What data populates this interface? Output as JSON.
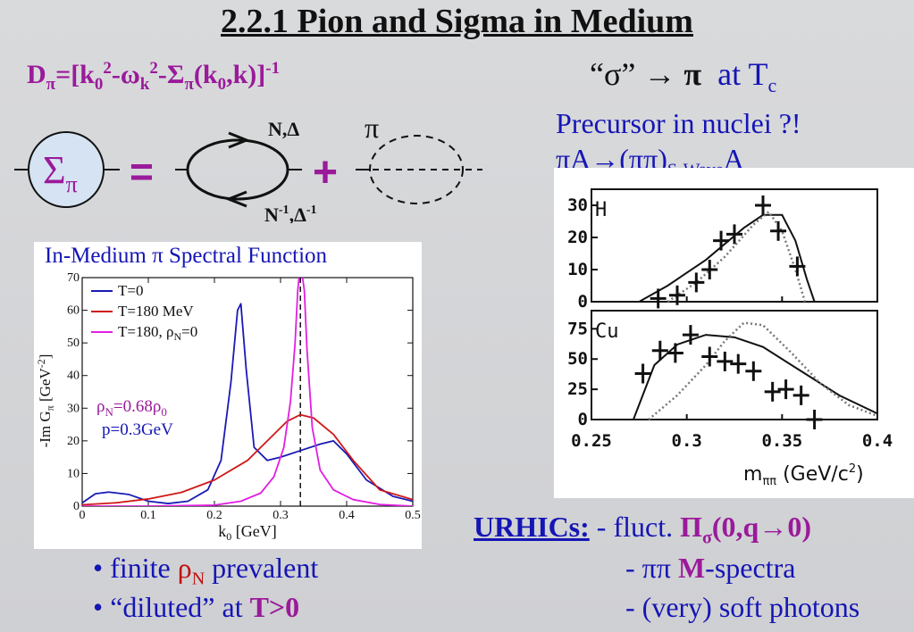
{
  "title": "2.2.1 Pion and Sigma in Medium",
  "formula": {
    "text": "D",
    "sub": "π",
    "rest1": "=[k",
    "sub0": "0",
    "sup2": "2",
    "rest2": "-ω",
    "subk": "k",
    "sup2b": "2",
    "rest3": "-Σ",
    "subpi": "π",
    "rest4": "(k",
    "sub0b": "0",
    "rest5": ",k)]",
    "supm1": "-1"
  },
  "sigma_pi": {
    "quote_sigma": "“σ”",
    "arrow": "→",
    "pi": "π",
    "at": "at T",
    "c": "c"
  },
  "precursor": {
    "line1": "Precursor in nuclei ?!",
    "line2a": "πA→(ππ)",
    "line2sub": "S-Wave",
    "line2b": "A"
  },
  "diagram": {
    "sigma_label": "Σ",
    "sigma_sub": "π",
    "equals": "=",
    "plus": "+",
    "loop_top": "N,Δ",
    "loop_bottom_a": "N",
    "loop_bottom_sup": "-1",
    "loop_bottom_b": ",Δ",
    "loop_bottom_sup2": "-1",
    "pi_label": "π"
  },
  "spectral": {
    "caption_a": "In-Medium ",
    "caption_pi": "π",
    "caption_b": " Spectral Function",
    "legend": [
      {
        "label": "T=0",
        "color": "#1a1ab4"
      },
      {
        "label": "T=180 MeV",
        "color": "#d01818"
      },
      {
        "label_a": "T=180, ρ",
        "label_sub": "N",
        "label_b": "=0",
        "color": "#e020e0"
      }
    ],
    "rho_a": "ρ",
    "rho_sub": "N",
    "rho_b": "=0.68ρ",
    "rho_sub2": "0",
    "p": "p=0.3GeV",
    "ylabel": "-Im G",
    "ylabel_sub": "π",
    "ylabel_unit": " [GeV",
    "ylabel_sup": "-2",
    "ylabel_close": "]",
    "xlabel_a": "k",
    "xlabel_sub": "0",
    "xlabel_b": " [GeV]",
    "xticks": [
      "0",
      "0.1",
      "0.2",
      "0.3",
      "0.4",
      "0.5"
    ],
    "yticks": [
      "0",
      "10",
      "20",
      "30",
      "40",
      "50",
      "60",
      "70"
    ]
  },
  "chart_data": [
    {
      "type": "line",
      "title": "In-Medium π Spectral Function",
      "xlabel": "k0 [GeV]",
      "ylabel": "-Im Gπ [GeV-2]",
      "xlim": [
        0,
        0.5
      ],
      "ylim": [
        0,
        70
      ],
      "series": [
        {
          "name": "T=0",
          "x": [
            0.0,
            0.02,
            0.04,
            0.07,
            0.1,
            0.13,
            0.16,
            0.19,
            0.21,
            0.225,
            0.235,
            0.24,
            0.248,
            0.26,
            0.28,
            0.3,
            0.33,
            0.36,
            0.38,
            0.4,
            0.43,
            0.47,
            0.5
          ],
          "y": [
            1,
            3.8,
            4.3,
            3.6,
            1.5,
            0.8,
            1.5,
            5,
            14,
            38,
            60,
            62,
            42,
            18,
            14,
            15,
            17,
            19,
            20,
            16,
            8,
            3,
            1.5
          ]
        },
        {
          "name": "T=180 MeV",
          "x": [
            0.0,
            0.05,
            0.1,
            0.15,
            0.2,
            0.25,
            0.28,
            0.31,
            0.33,
            0.35,
            0.38,
            0.41,
            0.45,
            0.5
          ],
          "y": [
            0.4,
            1,
            2.2,
            4.2,
            8,
            14,
            20,
            26,
            28,
            27,
            22,
            14,
            5,
            2
          ]
        },
        {
          "name": "T=180, ρN=0",
          "x": [
            0.0,
            0.1,
            0.2,
            0.24,
            0.27,
            0.29,
            0.305,
            0.315,
            0.322,
            0.326,
            0.329,
            0.332,
            0.336,
            0.34,
            0.348,
            0.36,
            0.38,
            0.41,
            0.45,
            0.5
          ],
          "y": [
            0,
            0,
            0.3,
            1.5,
            4,
            9,
            18,
            32,
            50,
            66,
            72,
            72,
            66,
            48,
            24,
            11,
            5,
            2,
            0.5,
            0
          ]
        }
      ],
      "vline_x": 0.33
    },
    {
      "type": "scatter",
      "panels": [
        {
          "label": "H",
          "ylim": [
            0,
            35
          ],
          "yticks": [
            "30",
            "20",
            "10",
            "0"
          ],
          "points_x": [
            0.285,
            0.295,
            0.305,
            0.312,
            0.318,
            0.325,
            0.34,
            0.348,
            0.358
          ],
          "points_y": [
            1,
            2,
            6,
            10,
            19,
            21,
            30,
            22,
            11
          ]
        },
        {
          "label": "Cu",
          "ylim": [
            0,
            90
          ],
          "yticks": [
            "75",
            "50",
            "25",
            "0"
          ],
          "points_x": [
            0.277,
            0.286,
            0.294,
            0.302,
            0.312,
            0.32,
            0.327,
            0.335,
            0.345,
            0.352,
            0.36,
            0.367
          ],
          "points_y": [
            38,
            57,
            55,
            70,
            52,
            48,
            46,
            40,
            23,
            25,
            20,
            0
          ]
        }
      ],
      "xlim": [
        0.25,
        0.4
      ],
      "xticks": [
        "0.25",
        "0.3",
        "0.35",
        "0.4"
      ],
      "xlabel": "mππ (GeV/c²)"
    }
  ],
  "nuclei": {
    "panel_h": "H",
    "panel_cu": "Cu",
    "xlabel_a": "m",
    "xlabel_sub": "ππ",
    "xlabel_b": " (GeV/c",
    "xlabel_sup": "2",
    "xlabel_c": ")"
  },
  "bullets": [
    {
      "a": "• finite ",
      "b": "ρ",
      "bsub": "N",
      "c": " prevalent"
    },
    {
      "a": "• “diluted” at ",
      "b": "T>0"
    }
  ],
  "urhics": {
    "label": "URHICs:",
    "l1a": " - fluct. ",
    "l1b": "Π",
    "l1sub": "σ",
    "l1c": "(0,q→0)",
    "l2a": "- ππ ",
    "l2b": "M",
    "l2c": "-spectra",
    "l3": "- (very) soft photons"
  }
}
